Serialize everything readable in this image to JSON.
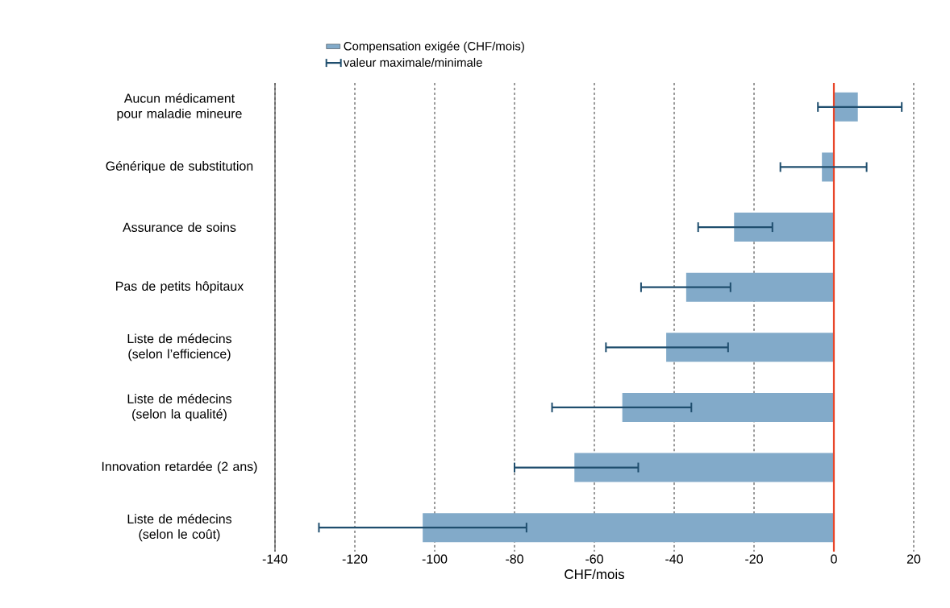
{
  "chart_data": {
    "type": "bar",
    "orientation": "horizontal",
    "categories": [
      "Aucun médicament pour maladie mineure",
      "Générique de substitution",
      "Assurance de soins",
      "Pas de petits hôpitaux",
      "Liste de médecins (selon l’efficience)",
      "Liste de médecins (selon la qualité)",
      "Innovation retardée (2 ans)",
      "Liste de médecins (selon le coût)"
    ],
    "series": [
      {
        "name": "Compensation exigée (CHF/mois)",
        "color": "#82aac9",
        "values": [
          6,
          -3,
          -25,
          -37,
          -42,
          -53,
          -65,
          -103
        ],
        "errors": [
          [
            -4,
            17
          ],
          [
            -13.4,
            8.2
          ],
          [
            -34,
            -15.4
          ],
          [
            -48.3,
            -25.9
          ],
          [
            -57.1,
            -26.5
          ],
          [
            -70.6,
            -35.7
          ],
          [
            -80,
            -49
          ],
          [
            -129,
            -77
          ]
        ]
      }
    ],
    "xlabel": "CHF/mois",
    "xlim": [
      -140,
      20
    ],
    "xticks": [
      -140,
      -120,
      -100,
      -80,
      -60,
      -40,
      -20,
      0,
      20
    ],
    "grid": "x",
    "legend": "top",
    "ref_lines": [
      {
        "axis": "x",
        "value": 0,
        "color": "#e8462a"
      }
    ],
    "annotations": [
      "valeur maximale/minimale"
    ]
  }
}
